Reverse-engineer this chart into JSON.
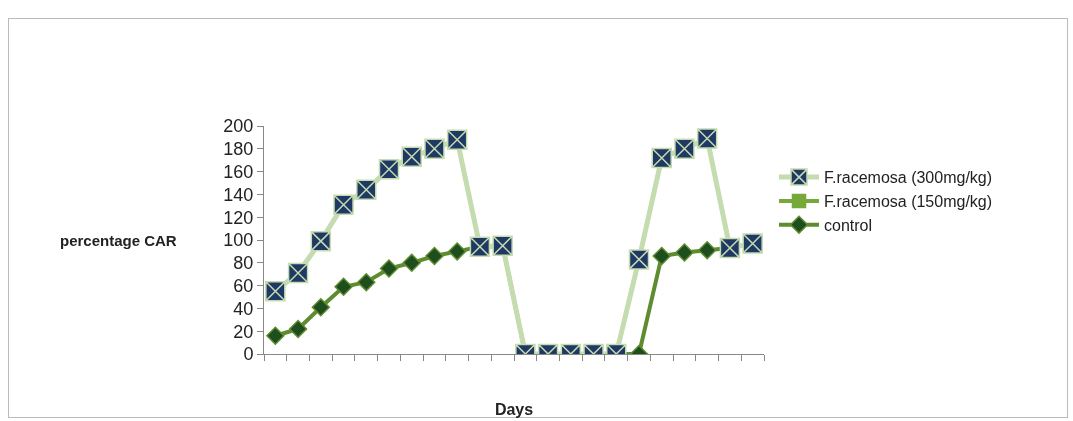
{
  "chart_data": {
    "type": "line",
    "xlabel": "Days",
    "ylabel": "percentage CAR",
    "categories": [
      null,
      null,
      null,
      null,
      null,
      null,
      null,
      null,
      null,
      null,
      null,
      null,
      null,
      null,
      null,
      null,
      null,
      null,
      null,
      null,
      null,
      null
    ],
    "ylim": [
      0,
      200
    ],
    "yticks": [
      0,
      20,
      40,
      60,
      80,
      100,
      120,
      140,
      160,
      180,
      200
    ],
    "grid": false,
    "legend": "right",
    "series": [
      {
        "name": "F.racemosa (300mg/kg)",
        "color": "#c4dcb0",
        "marker": "cross",
        "values": [
          55,
          71,
          99,
          131,
          144,
          162,
          173,
          180,
          188,
          94,
          95,
          0,
          0,
          0,
          0,
          0,
          83,
          172,
          180,
          189,
          93,
          97
        ]
      },
      {
        "name": "F.racemosa (150mg/kg)",
        "color": "#77a83a",
        "marker": "square",
        "values": [
          null,
          null,
          null,
          null,
          null,
          null,
          null,
          null,
          null,
          null,
          null,
          null,
          null,
          null,
          null,
          null,
          null,
          null,
          null,
          null,
          null,
          null
        ]
      },
      {
        "name": "control",
        "color": "#5e8c2e",
        "marker": "diamond",
        "values": [
          16,
          22,
          41,
          59,
          63,
          75,
          80,
          86,
          90,
          94,
          95,
          0,
          0,
          0,
          0,
          0,
          0,
          86,
          89,
          91,
          93,
          97
        ]
      }
    ]
  }
}
